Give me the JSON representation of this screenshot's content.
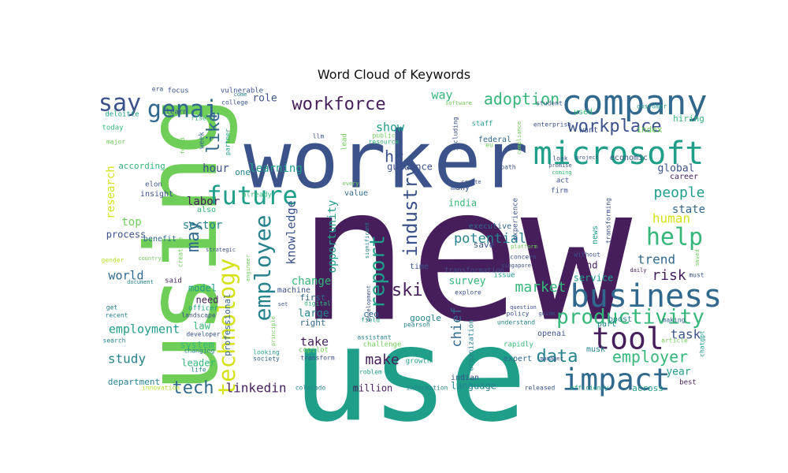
{
  "title": "Word Cloud of Keywords",
  "colormap": "viridis",
  "background": "#ffffff",
  "palette": {
    "dark_purple": "#461e5c",
    "indigo": "#3b528b",
    "blue": "#31688e",
    "teal_blue": "#26828e",
    "teal": "#1f9e89",
    "green_teal": "#35b779",
    "green": "#6ece58",
    "lime": "#b5de2b",
    "yellow": "#d4e21a"
  },
  "words": [
    "new",
    "use",
    "using",
    "worker",
    "company",
    "microsoft",
    "business",
    "tool",
    "impact",
    "productivity",
    "future",
    "technology",
    "employee",
    "help",
    "genai",
    "say",
    "workforce",
    "report",
    "industry",
    "skill",
    "adoption",
    "workplace",
    "data",
    "employer",
    "tech",
    "may",
    "like",
    "hr",
    "market",
    "risk",
    "people",
    "linkedin",
    "chief",
    "human",
    "trend",
    "potential",
    "knowledge",
    "opportunity",
    "make",
    "study",
    "employment",
    "task",
    "show",
    "way",
    "hour",
    "labor",
    "research",
    "learning",
    "state",
    "global",
    "world",
    "take",
    "change",
    "sector",
    "survey",
    "india",
    "guidance",
    "process",
    "top",
    "need",
    "model",
    "system",
    "large",
    "leader",
    "department",
    "million",
    "year",
    "across",
    "law",
    "service",
    "find",
    "news",
    "google",
    "ceo",
    "right",
    "first",
    "language",
    "indian",
    "expert",
    "openai",
    "boost",
    "part",
    "musk",
    "save",
    "time",
    "value",
    "many",
    "executive",
    "experience",
    "act",
    "firm",
    "used",
    "want",
    "index",
    "hiring",
    "career",
    "economic",
    "insight",
    "elon",
    "according",
    "professional",
    "machine",
    "also",
    "benefit",
    "one",
    "already",
    "role",
    "focus",
    "vulnerable",
    "era",
    "come",
    "partner",
    "college",
    "staff",
    "student",
    "customer",
    "learn",
    "rise",
    "deloitte",
    "today",
    "major",
    "week",
    "llm",
    "public",
    "resource",
    "lead",
    "federal",
    "eu",
    "software",
    "including",
    "compliance",
    "enterprise",
    "look",
    "project",
    "promise",
    "coming",
    "transforming",
    "officer",
    "recent",
    "get",
    "search",
    "landscape",
    "developer",
    "life",
    "changing",
    "looking",
    "society",
    "copilot",
    "transform",
    "digital",
    "assistant",
    "challenge",
    "growth",
    "problem",
    "information",
    "colorado",
    "released",
    "efficiency",
    "best",
    "issue",
    "concern",
    "platform",
    "singapore",
    "without",
    "daily",
    "must",
    "making",
    "article",
    "chatgpt",
    "saved",
    "policy",
    "question",
    "understand",
    "rapidly",
    "pearson",
    "field",
    "set",
    "explore",
    "organization",
    "transformation",
    "guide",
    "manager",
    "said",
    "document",
    "creative",
    "gender",
    "country",
    "strategic",
    "innovation",
    "significant",
    "principle",
    "engineer",
    "path",
    "create",
    "every",
    "found",
    "bias",
    "development"
  ]
}
